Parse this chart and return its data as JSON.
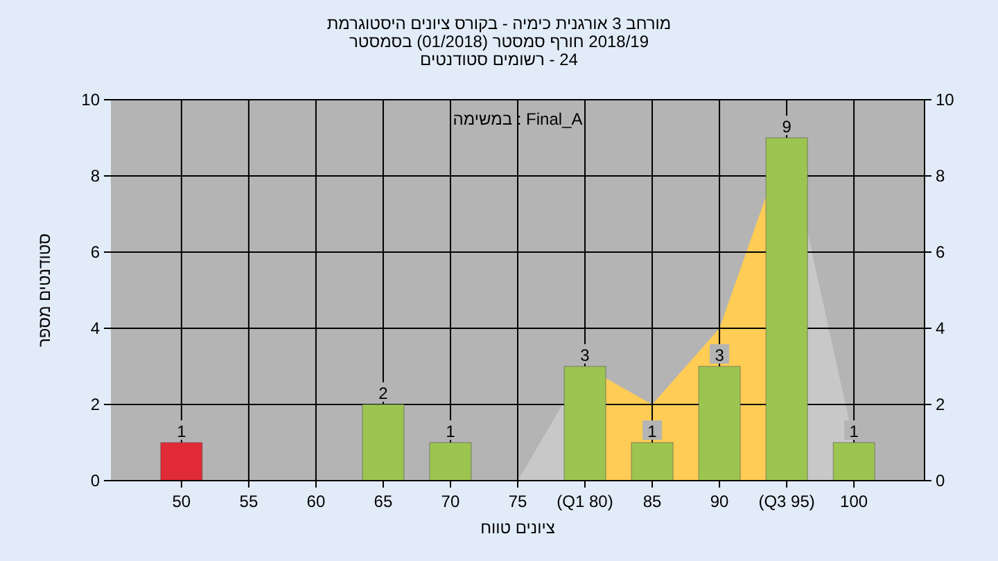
{
  "chart_data": {
    "type": "bar",
    "title": "מורחב 3 אורגנית כימיה - בקורס ציונים היסטוגרמת",
    "subtitle": "2018/19 חורף סמסטר  (01/2018)  בסמסטר\n24 - רשומים סטודנטים",
    "xlabel": "ציונים טווח",
    "ylabel": "סטודנטים מספר",
    "annotations": [
      "Final_A : במשימה"
    ],
    "categories": [
      "50",
      "55",
      "60",
      "65",
      "70",
      "75",
      "(Q1 80)",
      "85",
      "90",
      "(Q3 95)",
      "100"
    ],
    "series": [
      {
        "type": "area",
        "color": "#c8c8c8",
        "values": [
          null,
          null,
          null,
          null,
          null,
          0,
          3,
          null,
          null,
          9,
          1
        ]
      },
      {
        "type": "area",
        "color": "#ffcc55",
        "values": [
          null,
          null,
          null,
          null,
          null,
          null,
          3,
          2,
          4,
          9,
          null
        ]
      },
      {
        "colors": [
          "#e02a36",
          "#9cc450",
          "#9cc450",
          "#9cc450",
          "#9cc450",
          "#9cc450",
          "#9cc450",
          "#9cc450",
          "#9cc450",
          "#9cc450",
          "#9cc450"
        ],
        "values": [
          1,
          0,
          0,
          2,
          1,
          0,
          3,
          1,
          3,
          9,
          1
        ],
        "value_labels": [
          "1",
          null,
          null,
          "2",
          "1",
          null,
          "3",
          "1",
          "3",
          "9",
          "1"
        ]
      }
    ],
    "ylim": [
      0,
      10
    ],
    "yticks": [
      0,
      2,
      4,
      6,
      8,
      10
    ],
    "y2lim": [
      0,
      10
    ],
    "y2ticks": [
      0,
      2,
      4,
      6,
      8,
      10
    ],
    "grid": true
  }
}
